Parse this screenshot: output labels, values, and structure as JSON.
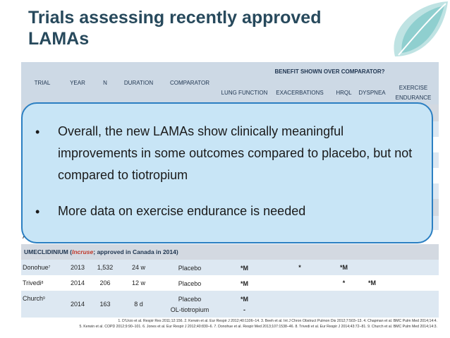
{
  "title": [
    "Trials assessing recently approved",
    "LAMAs"
  ],
  "table": {
    "header": {
      "group": "BENEFIT SHOWN OVER COMPARATOR?",
      "columns": [
        "TRIAL",
        "YEAR",
        "N",
        "DURATION",
        "COMPARATOR",
        "LUNG FUNCTION",
        "EXACERBATIONS",
        "HRQL",
        "DYSPNEA",
        "EXERCISE ENDURANCE"
      ]
    },
    "fragment": "AT I",
    "section": {
      "before": "UMECLIDINIUM (",
      "brand": "Incruse",
      "after": "; approved in Canada in 2014)"
    },
    "rows": [
      {
        "trial": "Donohue",
        "ref": "7",
        "cells": [
          "2013",
          "1,532",
          "24 w",
          [
            "Placebo"
          ],
          [
            "*M"
          ],
          "*",
          "*M",
          null,
          null
        ]
      },
      {
        "trial": "Trivedi",
        "ref": "8",
        "cells": [
          "2014",
          "206",
          "12 w",
          [
            "Placebo"
          ],
          [
            "*M"
          ],
          null,
          "*",
          "*M",
          null
        ]
      },
      {
        "trial": "Church",
        "ref": "9",
        "cells": [
          "2014",
          "163",
          "8 d",
          [
            "Placebo",
            "OL-tiotropium"
          ],
          [
            "*M",
            "-"
          ],
          null,
          null,
          null,
          null
        ]
      }
    ],
    "footnotes": [
      "1. D'Urzo et al. Respir Res 2011;12:156. 2. Kerwin et al. Eur Respir J 2012;40:1106–14. 3. Beeh et al. Int J Chron Obstruct Pulmon Dis 2012;7:503–13. 4. Chapman et al. BMC Pulm Med 2014;14:4.",
      "5. Kerwin et al. COPD 2012;9:90–101. 6. Jones et al. Eur Respir J 2012;40:830–6. 7. Donohue et al. Respir Med 2013;107:1538–46. 8. Trivedi et al. Eur Respir J 2014;43:72–81. 9. Church et al. BMC Pulm Med 2014;14:3."
    ]
  },
  "callout": {
    "bullets": [
      "Overall, the new LAMAs show clinically meaningful improvements in some outcomes compared to placebo, but not compared to tiotropium",
      "More data on exercise endurance is needed"
    ]
  }
}
